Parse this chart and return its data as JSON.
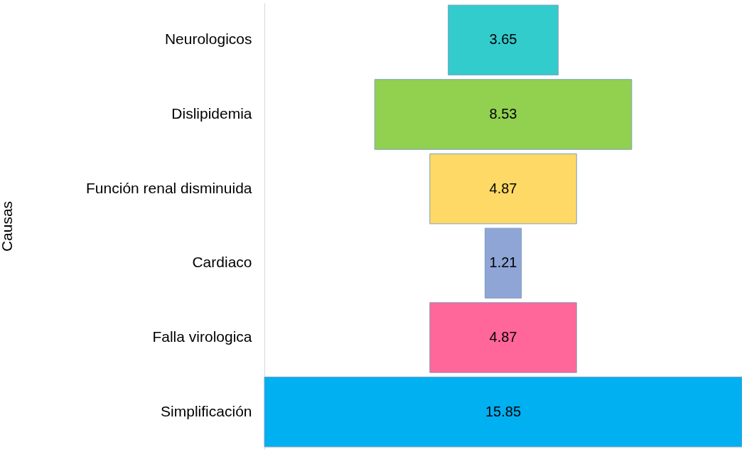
{
  "chart_data": {
    "type": "other",
    "ylabel": "Causas",
    "categories": [
      "Neurologicos",
      "Dislipidemia",
      "Función renal disminuida",
      "Cardiaco",
      "Falla virologica",
      "Simplificación"
    ],
    "values": [
      3.65,
      8.53,
      4.87,
      1.21,
      4.87,
      15.85
    ],
    "colors": [
      "#33cccc",
      "#92d050",
      "#ffd966",
      "#8fa5d6",
      "#ff6699",
      "#00b0f0"
    ],
    "data_labels": true
  }
}
